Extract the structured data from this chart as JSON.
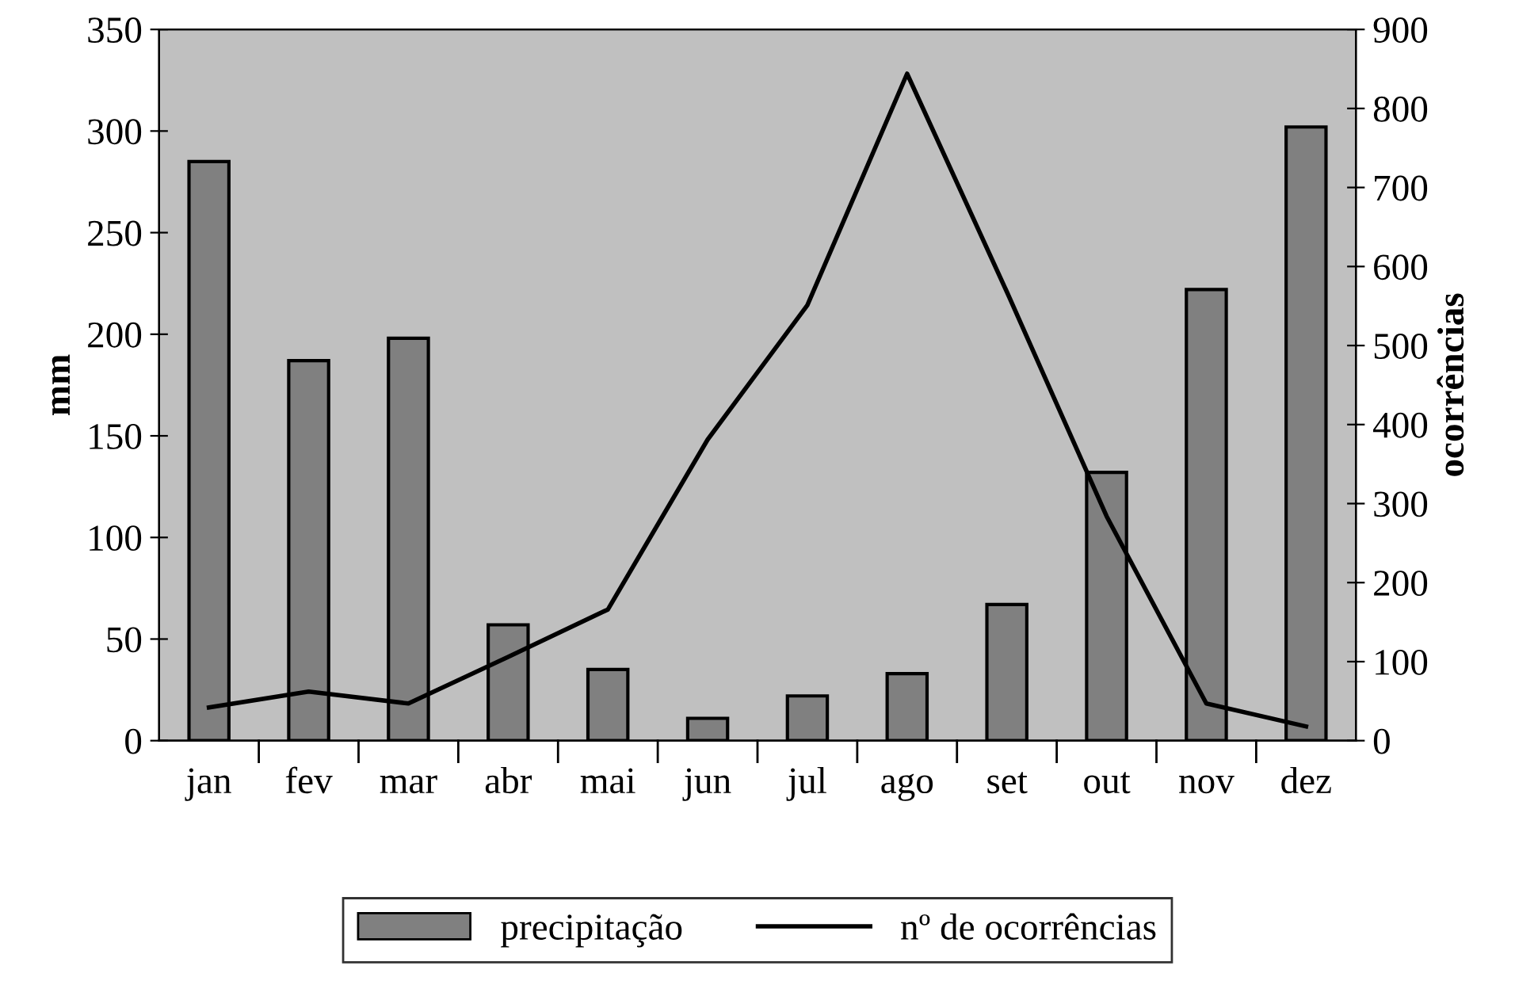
{
  "chart_data": {
    "type": "bar",
    "categories": [
      "jan",
      "fev",
      "mar",
      "abr",
      "mai",
      "jun",
      "jul",
      "ago",
      "set",
      "out",
      "nov",
      "dez"
    ],
    "ylabel": "mm",
    "y2label": "ocorrências",
    "series": [
      {
        "name": "precipitação",
        "color": "#808080",
        "values": [
          285,
          187,
          198,
          57,
          35,
          11,
          22,
          33,
          67,
          132,
          222,
          302
        ]
      },
      {
        "name": "nº de ocorrências",
        "type": "line",
        "axis": "y2",
        "color": "#000000",
        "values": [
          42,
          62,
          47,
          106,
          166,
          381,
          551,
          844,
          568,
          284,
          47,
          18
        ]
      }
    ],
    "ylim": [
      0,
      350
    ],
    "yticks": [
      0,
      50,
      100,
      150,
      200,
      250,
      300,
      350
    ],
    "y2lim": [
      0,
      900
    ],
    "y2ticks": [
      0,
      100,
      200,
      300,
      400,
      500,
      600,
      700,
      800,
      900
    ],
    "grid": false,
    "legend": "bottom",
    "marker": "none",
    "line_style": "solid"
  }
}
